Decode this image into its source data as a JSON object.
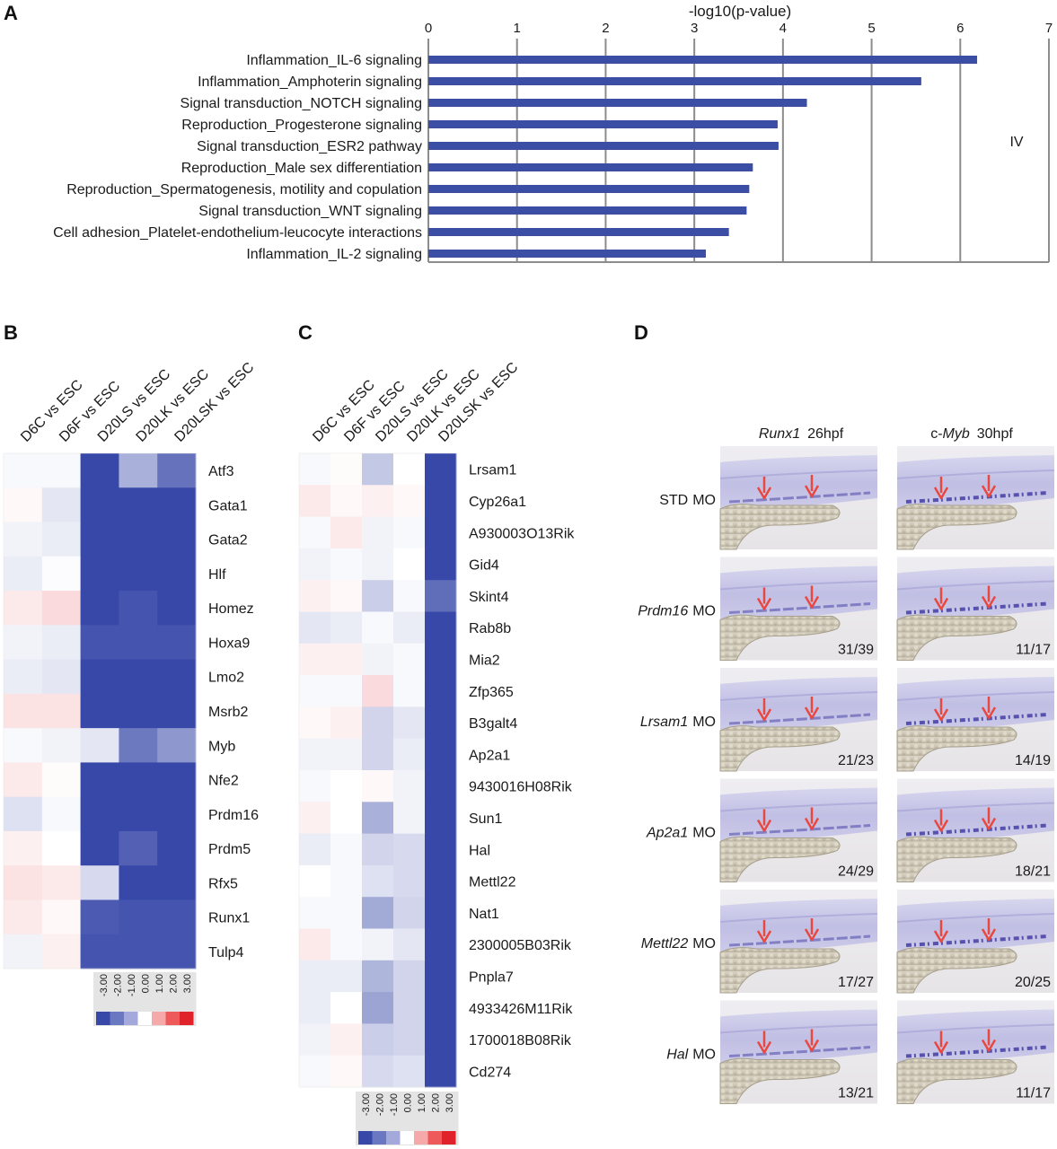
{
  "panel_a": {
    "label": "A",
    "axis_title": "-log10(p-value)",
    "annotation": "IV",
    "chart_data": {
      "type": "bar",
      "orientation": "horizontal",
      "xlabel": "-log10(p-value)",
      "xlim": [
        0,
        7
      ],
      "ticks": [
        "0",
        "1",
        "2",
        "3",
        "4",
        "5",
        "6",
        "7"
      ],
      "grid": true,
      "categories": [
        "Inflammation_IL-6 signaling",
        "Inflammation_Amphoterin signaling",
        "Signal transduction_NOTCH signaling",
        "Reproduction_Progesterone signaling",
        "Signal transduction_ESR2 pathway",
        "Reproduction_Male sex differentiation",
        "Reproduction_Spermatogenesis, motility and copulation",
        "Signal transduction_WNT signaling",
        "Cell adhesion_Platelet-endothelium-leucocyte interactions",
        "Inflammation_IL-2 signaling"
      ],
      "values": [
        6.19,
        5.56,
        4.27,
        3.94,
        3.95,
        3.66,
        3.62,
        3.59,
        3.39,
        3.13
      ],
      "bar_color": "#3b4ea3"
    }
  },
  "panel_b": {
    "label": "B",
    "chart_data": {
      "type": "heatmap",
      "columns": [
        "D6C vs ESC",
        "D6F vs ESC",
        "D20LS vs ESC",
        "D20LK vs ESC",
        "D20LSK vs ESC"
      ],
      "rows": [
        "Atf3",
        "Gata1",
        "Gata2",
        "Hlf",
        "Homez",
        "Hoxa9",
        "Lmo2",
        "Msrb2",
        "Myb",
        "Nfe2",
        "Prdm16",
        "Prdm5",
        "Rfx5",
        "Runx1",
        "Tulp4"
      ],
      "values": [
        [
          -0.1,
          -0.1,
          -3.0,
          -1.3,
          -2.3
        ],
        [
          0.1,
          -0.4,
          -3.0,
          -3.0,
          -3.0
        ],
        [
          -0.2,
          -0.3,
          -3.0,
          -3.0,
          -3.0
        ],
        [
          -0.3,
          -0.05,
          -3.0,
          -3.0,
          -3.0
        ],
        [
          0.3,
          0.5,
          -3.0,
          -2.8,
          -3.0
        ],
        [
          -0.2,
          -0.3,
          -2.8,
          -2.8,
          -2.8
        ],
        [
          -0.3,
          -0.4,
          -3.0,
          -3.0,
          -3.0
        ],
        [
          0.4,
          0.4,
          -3.0,
          -3.0,
          -3.0
        ],
        [
          -0.1,
          -0.2,
          -0.4,
          -2.2,
          -1.7
        ],
        [
          0.3,
          0.05,
          -3.0,
          -3.0,
          -3.0
        ],
        [
          -0.5,
          -0.1,
          -3.0,
          -3.0,
          -3.0
        ],
        [
          0.2,
          0.0,
          -3.0,
          -2.6,
          -3.0
        ],
        [
          0.4,
          0.3,
          -0.6,
          -3.0,
          -3.0
        ],
        [
          0.3,
          0.1,
          -2.7,
          -2.8,
          -2.8
        ],
        [
          -0.2,
          0.2,
          -2.8,
          -2.8,
          -2.8
        ]
      ],
      "scale_labels": [
        "-3.00",
        "-2.00",
        "-1.00",
        "0.00",
        "1.00",
        "2.00",
        "3.00"
      ],
      "scale_colors": [
        "#3848a8",
        "#6a78c2",
        "#a3aadb",
        "#ffffff",
        "#f6a9a9",
        "#ee5a5a",
        "#e0232b"
      ]
    }
  },
  "panel_c": {
    "label": "C",
    "chart_data": {
      "type": "heatmap",
      "columns": [
        "D6C vs ESC",
        "D6F vs ESC",
        "D20LS vs ESC",
        "D20LK vs ESC",
        "D20LSK vs ESC"
      ],
      "rows": [
        "Lrsam1",
        "Cyp26a1",
        "A930003O13Rik",
        "Gid4",
        "Skint4",
        "Rab8b",
        "Mia2",
        "Zfp365",
        "B3galt4",
        "Ap2a1",
        "9430016H08Rik",
        "Sun1",
        "Hal",
        "Mettl22",
        "Nat1",
        "2300005B03Rik",
        "Pnpla7",
        "4933426M11Rik",
        "1700018B08Rik",
        "Cd274"
      ],
      "values": [
        [
          -0.1,
          0.05,
          -0.9,
          0.0,
          -3.0
        ],
        [
          0.3,
          0.1,
          0.2,
          0.1,
          -3.0
        ],
        [
          -0.1,
          0.3,
          -0.2,
          -0.1,
          -3.0
        ],
        [
          -0.2,
          -0.1,
          -0.2,
          0.0,
          -3.0
        ],
        [
          0.2,
          0.1,
          -0.8,
          -0.1,
          -2.4
        ],
        [
          -0.4,
          -0.3,
          -0.1,
          -0.3,
          -3.0
        ],
        [
          0.2,
          0.2,
          -0.2,
          -0.1,
          -3.0
        ],
        [
          -0.1,
          -0.1,
          0.5,
          -0.1,
          -3.0
        ],
        [
          0.1,
          0.2,
          -0.7,
          -0.4,
          -3.0
        ],
        [
          -0.2,
          -0.2,
          -0.7,
          -0.3,
          -3.0
        ],
        [
          -0.1,
          0.0,
          0.1,
          -0.2,
          -3.0
        ],
        [
          0.2,
          0.0,
          -1.3,
          -0.2,
          -3.0
        ],
        [
          -0.3,
          -0.1,
          -0.7,
          -0.6,
          -3.0
        ],
        [
          0.0,
          -0.1,
          -0.5,
          -0.6,
          -3.0
        ],
        [
          -0.1,
          -0.1,
          -1.4,
          -0.7,
          -3.0
        ],
        [
          0.3,
          -0.1,
          -0.2,
          -0.4,
          -3.0
        ],
        [
          -0.3,
          -0.3,
          -1.2,
          -0.7,
          -3.0
        ],
        [
          -0.3,
          0.0,
          -1.5,
          -0.7,
          -3.0
        ],
        [
          -0.2,
          0.2,
          -0.8,
          -0.7,
          -3.0
        ],
        [
          -0.1,
          0.1,
          -0.6,
          -0.5,
          -3.0
        ]
      ],
      "scale_labels": [
        "-3.00",
        "-2.00",
        "-1.00",
        "0.00",
        "1.00",
        "2.00",
        "3.00"
      ],
      "scale_colors": [
        "#3848a8",
        "#6a78c2",
        "#a3aadb",
        "#ffffff",
        "#f6a9a9",
        "#ee5a5a",
        "#e0232b"
      ]
    }
  },
  "panel_d": {
    "label": "D",
    "col_headers": [
      {
        "gene": "Runx1",
        "prefix": "",
        "stage": "26hpf"
      },
      {
        "gene": "Myb",
        "prefix": "c-",
        "stage": "30hpf"
      }
    ],
    "rows": [
      {
        "mo": "STD",
        "mo_italic": false,
        "suffix": "MO",
        "counts": [
          "",
          ""
        ]
      },
      {
        "mo": "Prdm16",
        "mo_italic": true,
        "suffix": "MO",
        "counts": [
          "31/39",
          "11/17"
        ]
      },
      {
        "mo": "Lrsam1",
        "mo_italic": true,
        "suffix": "MO",
        "counts": [
          "21/23",
          "14/19"
        ]
      },
      {
        "mo": "Ap2a1",
        "mo_italic": true,
        "suffix": "MO",
        "counts": [
          "24/29",
          "18/21"
        ]
      },
      {
        "mo": "Mettl22",
        "mo_italic": true,
        "suffix": "MO",
        "counts": [
          "17/27",
          "20/25"
        ]
      },
      {
        "mo": "Hal",
        "mo_italic": true,
        "suffix": "MO",
        "counts": [
          "13/21",
          "11/17"
        ]
      }
    ],
    "arrow_color": "#e8483f"
  }
}
